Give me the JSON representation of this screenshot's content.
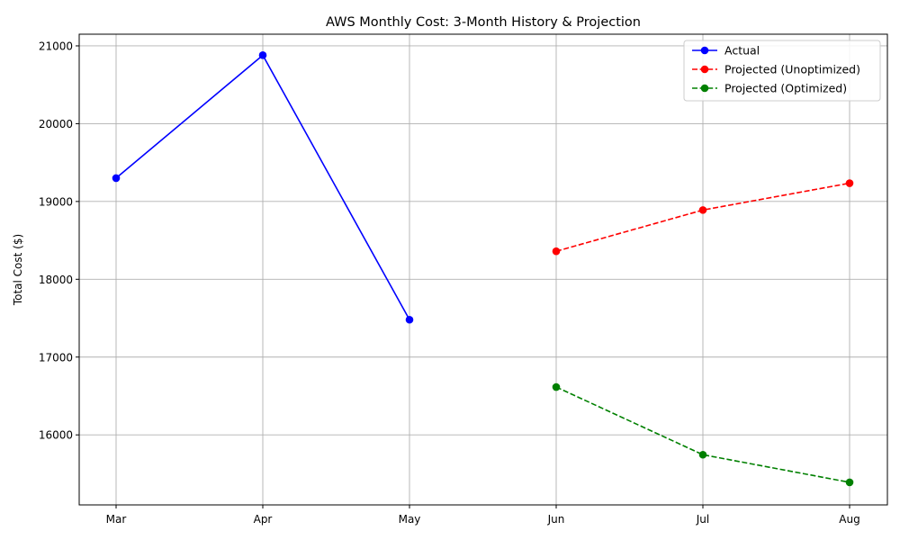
{
  "chart_data": {
    "type": "line",
    "title": "AWS Monthly Cost: 3-Month History & Projection",
    "xlabel": "",
    "ylabel": "Total Cost ($)",
    "categories": [
      "Mar",
      "Apr",
      "May",
      "Jun",
      "Jul",
      "Aug"
    ],
    "ylim": [
      15100,
      21150
    ],
    "yticks": [
      16000,
      17000,
      18000,
      19000,
      20000,
      21000
    ],
    "grid": true,
    "legend_position": "top-right",
    "series": [
      {
        "name": "Actual",
        "x": [
          "Mar",
          "Apr",
          "May"
        ],
        "values": [
          19300,
          20880,
          17480
        ],
        "color": "#0000ff",
        "style": "solid",
        "marker": "circle"
      },
      {
        "name": "Projected (Unoptimized)",
        "x": [
          "Jun",
          "Jul",
          "Aug"
        ],
        "values": [
          18360,
          18890,
          19235
        ],
        "color": "#ff0000",
        "style": "dashed",
        "marker": "circle"
      },
      {
        "name": "Projected (Optimized)",
        "x": [
          "Jun",
          "Jul",
          "Aug"
        ],
        "values": [
          16615,
          15745,
          15390
        ],
        "color": "#008000",
        "style": "dashed",
        "marker": "circle"
      }
    ]
  }
}
